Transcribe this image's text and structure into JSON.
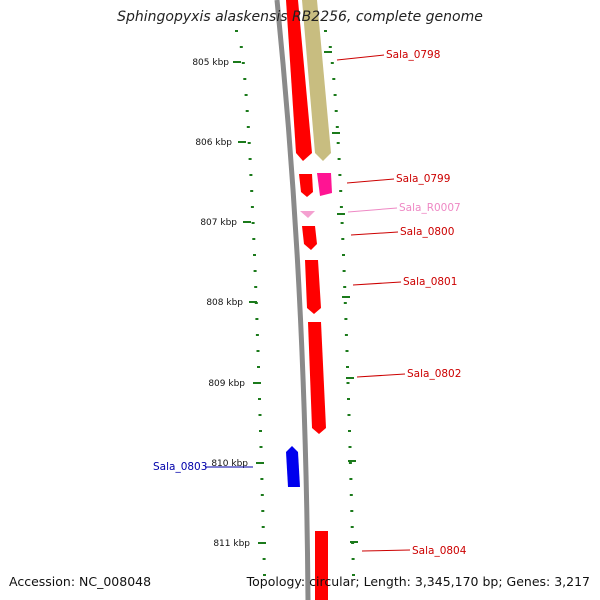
{
  "title": "Sphingopyxis alaskensis RB2256, complete genome",
  "accession": "Accession: NC_008048",
  "summary": "Topology: circular; Length: 3,345,170 bp; Genes: 3,217",
  "colors": {
    "gene_red": "#ff0000",
    "gene_blue": "#0000ee",
    "gene_magenta": "#ff1493",
    "gene_pink": "#f4a0d0",
    "gene_olive": "#c8bd80",
    "backbone": "#8a8a8a",
    "tick_green": "#1b7a1b",
    "label_red": "#cc0000",
    "label_blue": "#0000aa",
    "label_pink": "#ee88c4"
  },
  "ticks": [
    {
      "label": "805 kbp"
    },
    {
      "label": "806 kbp"
    },
    {
      "label": "807 kbp"
    },
    {
      "label": "808 kbp"
    },
    {
      "label": "809 kbp"
    },
    {
      "label": "810 kbp"
    },
    {
      "label": "811 kbp"
    }
  ],
  "genes": [
    {
      "name": "Sala_0798",
      "strand": "+",
      "color": "olive"
    },
    {
      "name": "Sala_0799",
      "strand": "+",
      "color": "red"
    },
    {
      "name": "Sala_R0007",
      "strand": "+",
      "color": "pink"
    },
    {
      "name": "Sala_0800",
      "strand": "+",
      "color": "red"
    },
    {
      "name": "Sala_0801",
      "strand": "+",
      "color": "red"
    },
    {
      "name": "Sala_0802",
      "strand": "+",
      "color": "red"
    },
    {
      "name": "Sala_0803",
      "strand": "-",
      "color": "blue"
    },
    {
      "name": "Sala_0804",
      "strand": "+",
      "color": "red"
    }
  ]
}
